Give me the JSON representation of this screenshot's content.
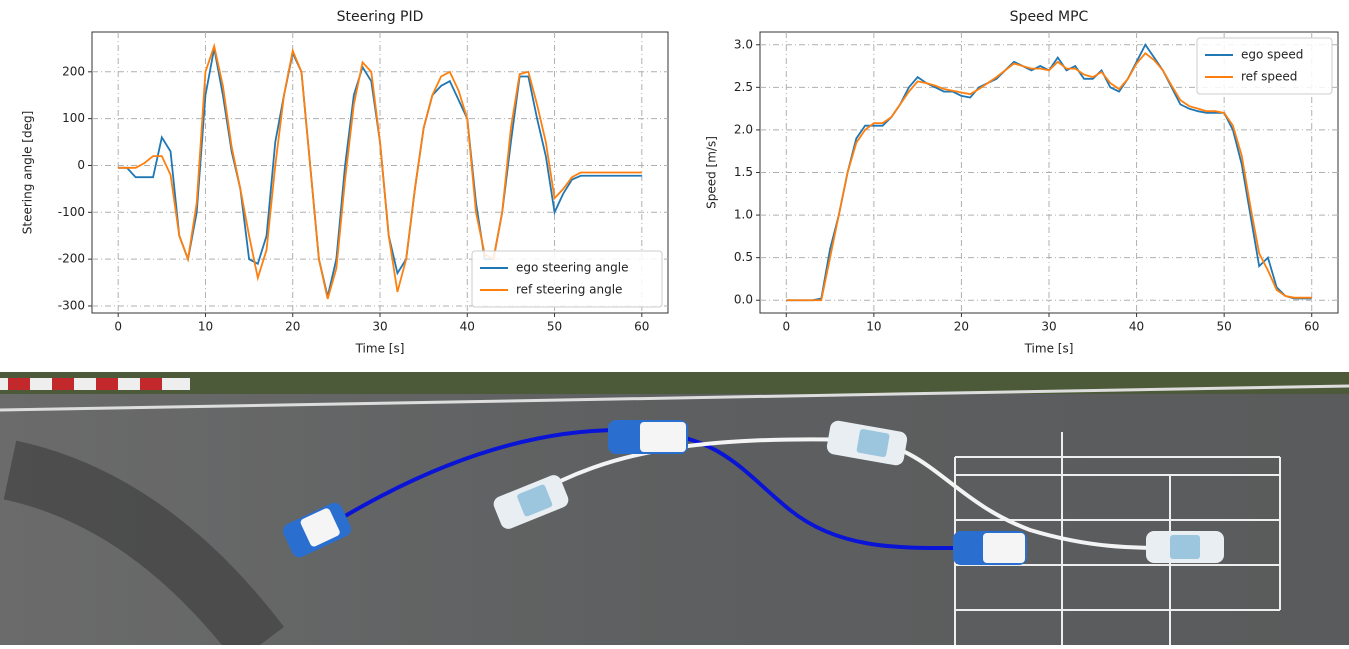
{
  "chart_data": [
    {
      "type": "line",
      "title": "Steering PID",
      "xlabel": "Time [s]",
      "ylabel": "Steering angle [deg]",
      "x": [
        0,
        1,
        2,
        3,
        4,
        5,
        6,
        7,
        8,
        9,
        10,
        11,
        12,
        13,
        14,
        15,
        16,
        17,
        18,
        19,
        20,
        21,
        22,
        23,
        24,
        25,
        26,
        27,
        28,
        29,
        30,
        31,
        32,
        33,
        34,
        35,
        36,
        37,
        38,
        39,
        40,
        41,
        42,
        43,
        44,
        45,
        46,
        47,
        48,
        49,
        50,
        51,
        52,
        53,
        54,
        55,
        56,
        57,
        58,
        59,
        60
      ],
      "series": [
        {
          "name": "ego steering angle",
          "color": "#1f77b4",
          "values": [
            -5,
            -5,
            -25,
            -25,
            -25,
            60,
            30,
            -150,
            -200,
            -100,
            150,
            250,
            150,
            30,
            -50,
            -200,
            -210,
            -150,
            50,
            150,
            240,
            200,
            0,
            -200,
            -280,
            -200,
            0,
            150,
            210,
            180,
            50,
            -150,
            -230,
            -200,
            -50,
            80,
            150,
            170,
            180,
            140,
            100,
            -80,
            -200,
            -200,
            -100,
            50,
            190,
            190,
            100,
            20,
            -100,
            -60,
            -30,
            -22,
            -22,
            -22,
            -22,
            -22,
            -22,
            -22,
            -22
          ]
        },
        {
          "name": "ref steering angle",
          "color": "#ff7f0e",
          "values": [
            -5,
            -5,
            -5,
            5,
            20,
            20,
            -20,
            -150,
            -200,
            -80,
            200,
            255,
            170,
            40,
            -50,
            -150,
            -240,
            -180,
            0,
            150,
            245,
            200,
            0,
            -200,
            -285,
            -220,
            -30,
            130,
            220,
            200,
            50,
            -150,
            -270,
            -200,
            -50,
            80,
            150,
            190,
            200,
            160,
            100,
            -100,
            -190,
            -200,
            -100,
            80,
            195,
            200,
            130,
            50,
            -70,
            -50,
            -25,
            -15,
            -15,
            -15,
            -15,
            -15,
            -15,
            -15,
            -15
          ]
        }
      ],
      "xlim": [
        -3,
        63
      ],
      "ylim": [
        -315,
        285
      ],
      "xticks": [
        0,
        10,
        20,
        30,
        40,
        50,
        60
      ],
      "yticks": [
        -300,
        -200,
        -100,
        0,
        100,
        200
      ],
      "grid": true,
      "legend": "lower right"
    },
    {
      "type": "line",
      "title": "Speed MPC",
      "xlabel": "Time [s]",
      "ylabel": "Speed [m/s]",
      "x": [
        0,
        1,
        2,
        3,
        4,
        5,
        6,
        7,
        8,
        9,
        10,
        11,
        12,
        13,
        14,
        15,
        16,
        17,
        18,
        19,
        20,
        21,
        22,
        23,
        24,
        25,
        26,
        27,
        28,
        29,
        30,
        31,
        32,
        33,
        34,
        35,
        36,
        37,
        38,
        39,
        40,
        41,
        42,
        43,
        44,
        45,
        46,
        47,
        48,
        49,
        50,
        51,
        52,
        53,
        54,
        55,
        56,
        57,
        58,
        59,
        60
      ],
      "series": [
        {
          "name": "ego speed",
          "color": "#1f77b4",
          "values": [
            0,
            0,
            0,
            0,
            0.02,
            0.6,
            1.0,
            1.5,
            1.9,
            2.05,
            2.05,
            2.05,
            2.15,
            2.3,
            2.5,
            2.62,
            2.55,
            2.5,
            2.45,
            2.45,
            2.4,
            2.38,
            2.5,
            2.55,
            2.6,
            2.7,
            2.8,
            2.75,
            2.7,
            2.75,
            2.7,
            2.85,
            2.7,
            2.75,
            2.6,
            2.6,
            2.7,
            2.5,
            2.45,
            2.6,
            2.8,
            3.0,
            2.85,
            2.7,
            2.5,
            2.3,
            2.25,
            2.22,
            2.2,
            2.2,
            2.2,
            2.0,
            1.6,
            1.0,
            0.4,
            0.5,
            0.15,
            0.05,
            0.02,
            0.02,
            0.02
          ]
        },
        {
          "name": "ref speed",
          "color": "#ff7f0e",
          "values": [
            0,
            0,
            0,
            0,
            0,
            0.5,
            1.0,
            1.5,
            1.85,
            2.0,
            2.08,
            2.08,
            2.15,
            2.3,
            2.45,
            2.57,
            2.55,
            2.52,
            2.48,
            2.46,
            2.44,
            2.42,
            2.48,
            2.55,
            2.62,
            2.7,
            2.78,
            2.75,
            2.72,
            2.72,
            2.7,
            2.8,
            2.72,
            2.72,
            2.65,
            2.62,
            2.68,
            2.55,
            2.48,
            2.6,
            2.78,
            2.9,
            2.82,
            2.7,
            2.52,
            2.35,
            2.28,
            2.25,
            2.22,
            2.22,
            2.2,
            2.05,
            1.7,
            1.1,
            0.55,
            0.35,
            0.12,
            0.05,
            0.03,
            0.03,
            0.03
          ]
        }
      ],
      "xlim": [
        -3,
        63
      ],
      "ylim": [
        -0.15,
        3.15
      ],
      "xticks": [
        0,
        10,
        20,
        30,
        40,
        50,
        60
      ],
      "yticks": [
        {
          "value": 0,
          "label": "0.0"
        },
        0.5,
        {
          "value": 1,
          "label": "1.0"
        },
        1.5,
        {
          "value": 2,
          "label": "2.0"
        },
        2.5,
        {
          "value": 3,
          "label": "3.0"
        }
      ],
      "grid": true,
      "legend": "upper right"
    }
  ]
}
